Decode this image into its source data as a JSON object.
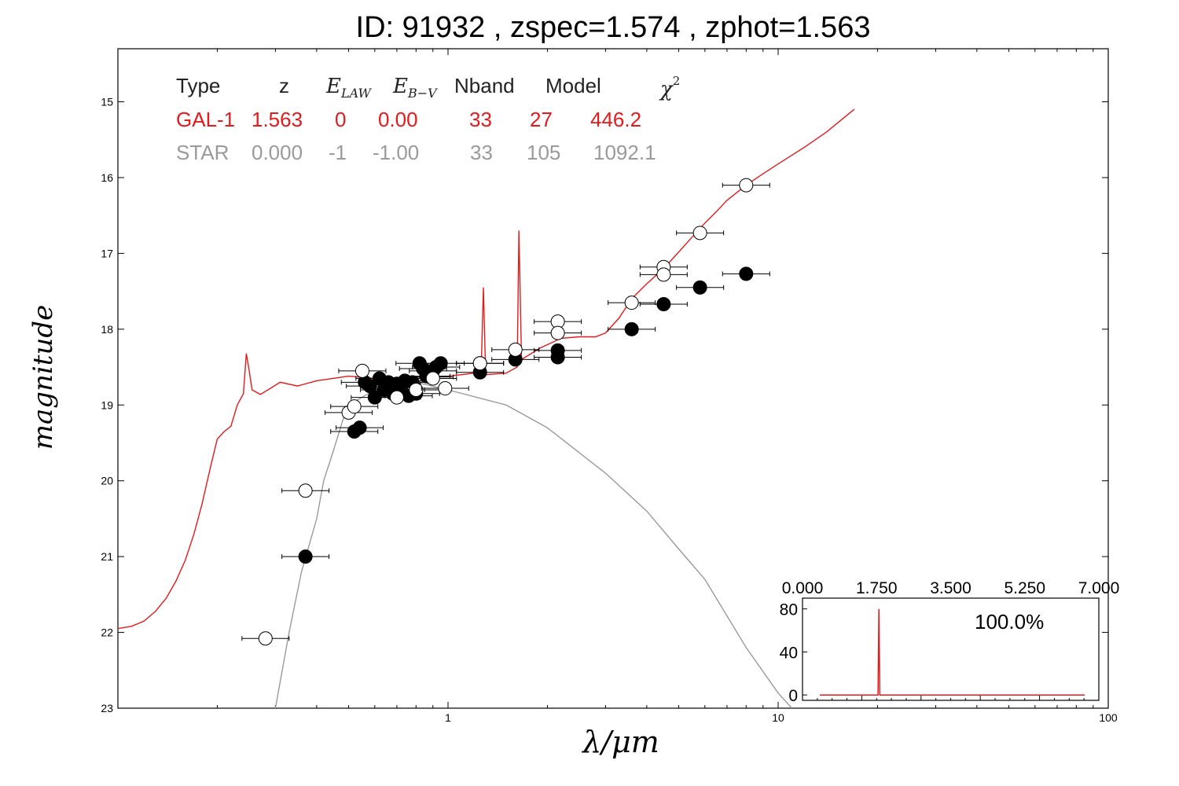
{
  "title": "ID:  91932 , zspec=1.574 , zphot=1.563",
  "table": {
    "headers": {
      "type": "Type",
      "z": "z",
      "elaw": "E",
      "elaw_sub": "LAW",
      "ebv": "E",
      "ebv_sub": "B−V",
      "nband": "Nband",
      "model": "Model",
      "chi": "χ",
      "chi_sup": "2"
    },
    "rows": [
      {
        "type": "GAL-1",
        "z": "1.563",
        "elaw": "0",
        "ebv": "0.00",
        "nband": "33",
        "model": "27",
        "chi2": "446.2"
      },
      {
        "type": "STAR",
        "z": "0.000",
        "elaw": "-1",
        "ebv": "-1.00",
        "nband": "33",
        "model": "105",
        "chi2": "1092.1"
      }
    ]
  },
  "colors": {
    "galaxy": "#e41a1c",
    "star": "#9a9a9a",
    "points": "#000000"
  },
  "chart_data": [
    {
      "type": "scatter",
      "xlabel": "λ/μm",
      "ylabel": "magnitude",
      "xscale": "log",
      "xlim": [
        0.1,
        100
      ],
      "ylim": [
        23,
        14.3
      ],
      "y_inverted": true,
      "xtick_labels": [
        "1",
        "10",
        "100"
      ],
      "ytick_labels": [
        "15",
        "16",
        "17",
        "18",
        "19",
        "20",
        "21",
        "22",
        "23"
      ],
      "series": [
        {
          "kind": "model",
          "color": "#e41a1c",
          "points": [
            [
              0.1,
              21.95
            ],
            [
              0.11,
              21.92
            ],
            [
              0.12,
              21.85
            ],
            [
              0.13,
              21.72
            ],
            [
              0.14,
              21.55
            ],
            [
              0.15,
              21.32
            ],
            [
              0.16,
              21.05
            ],
            [
              0.17,
              20.7
            ],
            [
              0.18,
              20.3
            ],
            [
              0.19,
              19.85
            ],
            [
              0.2,
              19.45
            ],
            [
              0.21,
              19.35
            ],
            [
              0.22,
              19.28
            ],
            [
              0.23,
              19.0
            ],
            [
              0.24,
              18.85
            ],
            [
              0.245,
              18.32
            ],
            [
              0.25,
              18.55
            ],
            [
              0.255,
              18.8
            ],
            [
              0.27,
              18.86
            ],
            [
              0.29,
              18.78
            ],
            [
              0.31,
              18.7
            ],
            [
              0.35,
              18.75
            ],
            [
              0.4,
              18.68
            ],
            [
              0.5,
              18.62
            ],
            [
              0.6,
              18.65
            ],
            [
              0.7,
              18.67
            ],
            [
              0.8,
              18.65
            ],
            [
              0.9,
              18.63
            ],
            [
              1.0,
              18.62
            ],
            [
              1.1,
              18.6
            ],
            [
              1.2,
              18.58
            ],
            [
              1.26,
              18.55
            ],
            [
              1.28,
              17.45
            ],
            [
              1.3,
              18.6
            ],
            [
              1.5,
              18.58
            ],
            [
              1.62,
              18.5
            ],
            [
              1.64,
              16.7
            ],
            [
              1.67,
              18.4
            ],
            [
              1.9,
              18.25
            ],
            [
              2.2,
              18.12
            ],
            [
              2.5,
              18.1
            ],
            [
              2.8,
              18.1
            ],
            [
              3.0,
              18.05
            ],
            [
              3.3,
              17.85
            ],
            [
              3.6,
              17.6
            ],
            [
              4.0,
              17.4
            ],
            [
              4.5,
              17.2
            ],
            [
              5.0,
              16.98
            ],
            [
              5.5,
              16.78
            ],
            [
              6.0,
              16.6
            ],
            [
              6.5,
              16.45
            ],
            [
              7.0,
              16.3
            ],
            [
              8.0,
              16.1
            ],
            [
              9.0,
              15.95
            ],
            [
              10.0,
              15.82
            ],
            [
              12.0,
              15.6
            ],
            [
              14.0,
              15.4
            ],
            [
              17.0,
              15.1
            ]
          ]
        },
        {
          "kind": "model",
          "color": "#9a9a9a",
          "points": [
            [
              0.3,
              23.0
            ],
            [
              0.33,
              22.0
            ],
            [
              0.36,
              21.2
            ],
            [
              0.4,
              20.5
            ],
            [
              0.42,
              20.0
            ],
            [
              0.45,
              19.6
            ],
            [
              0.48,
              19.2
            ],
            [
              0.5,
              19.0
            ],
            [
              0.6,
              18.8
            ],
            [
              0.7,
              18.7
            ],
            [
              0.8,
              18.7
            ],
            [
              1.0,
              18.8
            ],
            [
              1.5,
              19.0
            ],
            [
              2.0,
              19.3
            ],
            [
              3.0,
              19.9
            ],
            [
              4.0,
              20.4
            ],
            [
              5.0,
              20.9
            ],
            [
              6.0,
              21.3
            ],
            [
              8.0,
              22.2
            ],
            [
              10.0,
              22.8
            ],
            [
              11.0,
              23.0
            ]
          ]
        },
        {
          "kind": "observed",
          "marker": "filled",
          "points": [
            [
              0.37,
              21.0
            ],
            [
              0.52,
              19.35
            ],
            [
              0.54,
              19.3
            ],
            [
              0.56,
              18.7
            ],
            [
              0.58,
              18.75
            ],
            [
              0.6,
              18.9
            ],
            [
              0.62,
              18.65
            ],
            [
              0.64,
              18.8
            ],
            [
              0.66,
              18.7
            ],
            [
              0.68,
              18.85
            ],
            [
              0.7,
              18.72
            ],
            [
              0.72,
              18.8
            ],
            [
              0.74,
              18.68
            ],
            [
              0.76,
              18.88
            ],
            [
              0.78,
              18.7
            ],
            [
              0.8,
              18.85
            ],
            [
              0.82,
              18.45
            ],
            [
              0.84,
              18.52
            ],
            [
              0.86,
              18.62
            ],
            [
              0.88,
              18.63
            ],
            [
              0.9,
              18.55
            ],
            [
              0.92,
              18.5
            ],
            [
              0.95,
              18.45
            ],
            [
              1.25,
              18.45
            ],
            [
              1.25,
              18.57
            ],
            [
              1.6,
              18.4
            ],
            [
              2.15,
              18.28
            ],
            [
              2.15,
              18.37
            ],
            [
              3.6,
              18.0
            ],
            [
              4.5,
              17.67
            ],
            [
              5.8,
              17.45
            ],
            [
              8.0,
              17.27
            ]
          ]
        },
        {
          "kind": "predicted",
          "marker": "open",
          "points": [
            [
              0.37,
              20.13
            ],
            [
              0.28,
              22.08
            ],
            [
              0.5,
              19.1
            ],
            [
              0.52,
              19.02
            ],
            [
              0.55,
              18.55
            ],
            [
              0.7,
              18.9
            ],
            [
              0.8,
              18.8
            ],
            [
              0.9,
              18.65
            ],
            [
              0.98,
              18.78
            ],
            [
              1.25,
              18.45
            ],
            [
              1.6,
              18.27
            ],
            [
              2.15,
              17.9
            ],
            [
              2.15,
              18.05
            ],
            [
              3.6,
              17.65
            ],
            [
              4.5,
              17.18
            ],
            [
              4.5,
              17.28
            ],
            [
              5.8,
              16.73
            ],
            [
              8.0,
              16.1
            ]
          ]
        }
      ]
    },
    {
      "type": "line",
      "xlim": [
        0,
        7
      ],
      "ylim": [
        -5,
        90
      ],
      "xtick_labels": [
        "0.000",
        "1.750",
        "3.500",
        "5.250",
        "7.000"
      ],
      "ytick_labels": [
        "0",
        "40",
        "80"
      ],
      "annotation": "100.0%",
      "series": [
        {
          "color": "#e41a1c",
          "x": [
            0.0,
            1.54,
            1.563,
            1.586,
            7.0
          ],
          "y": [
            0,
            0,
            80,
            0,
            0
          ]
        }
      ]
    }
  ]
}
